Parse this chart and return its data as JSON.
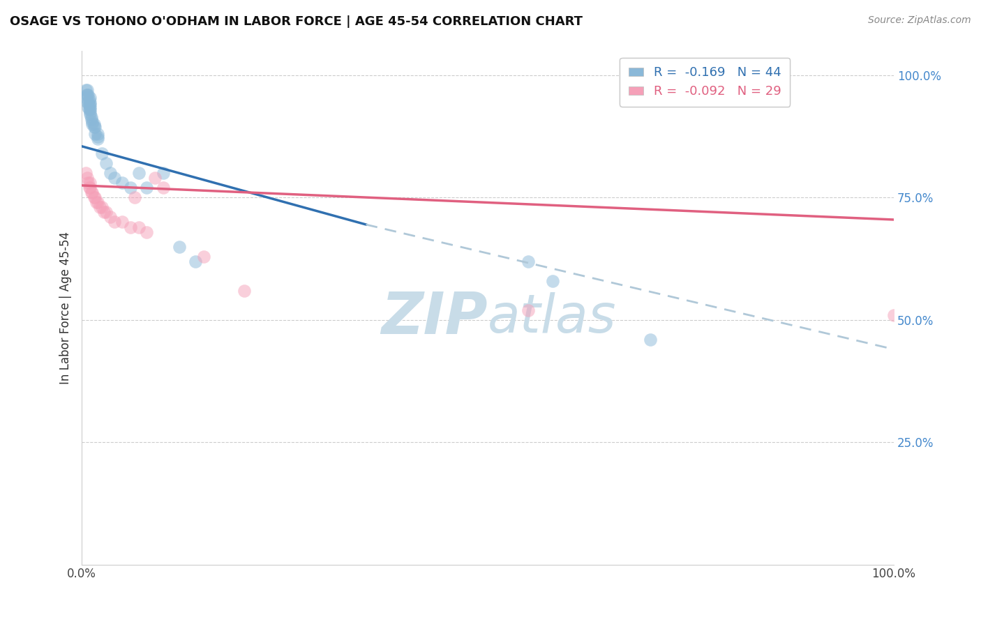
{
  "title": "OSAGE VS TOHONO O'ODHAM IN LABOR FORCE | AGE 45-54 CORRELATION CHART",
  "source_text": "Source: ZipAtlas.com",
  "ylabel": "In Labor Force | Age 45-54",
  "xlim": [
    0.0,
    1.0
  ],
  "ylim": [
    0.0,
    1.05
  ],
  "y_tick_labels": [
    "25.0%",
    "50.0%",
    "75.0%",
    "100.0%"
  ],
  "y_tick_values": [
    0.25,
    0.5,
    0.75,
    1.0
  ],
  "r_osage": -0.169,
  "n_osage": 44,
  "r_tohono": -0.092,
  "n_tohono": 29,
  "osage_color": "#8ab8d8",
  "tohono_color": "#f5a0b8",
  "osage_line_color": "#3070b0",
  "tohono_line_color": "#e06080",
  "dash_line_color": "#b0c8d8",
  "watermark_zip": "ZIP",
  "watermark_atlas": "atlas",
  "watermark_color": "#c8dce8",
  "background_color": "#ffffff",
  "osage_x": [
    0.005,
    0.005,
    0.006,
    0.007,
    0.007,
    0.007,
    0.008,
    0.008,
    0.008,
    0.009,
    0.009,
    0.009,
    0.01,
    0.01,
    0.01,
    0.01,
    0.01,
    0.01,
    0.01,
    0.012,
    0.012,
    0.013,
    0.013,
    0.015,
    0.015,
    0.016,
    0.016,
    0.02,
    0.02,
    0.02,
    0.025,
    0.03,
    0.035,
    0.04,
    0.05,
    0.06,
    0.07,
    0.08,
    0.1,
    0.12,
    0.14,
    0.55,
    0.58,
    0.7
  ],
  "osage_y": [
    0.955,
    0.97,
    0.96,
    0.945,
    0.96,
    0.97,
    0.935,
    0.945,
    0.96,
    0.93,
    0.94,
    0.95,
    0.92,
    0.925,
    0.93,
    0.935,
    0.94,
    0.945,
    0.955,
    0.91,
    0.915,
    0.9,
    0.905,
    0.9,
    0.895,
    0.895,
    0.88,
    0.87,
    0.875,
    0.88,
    0.84,
    0.82,
    0.8,
    0.79,
    0.78,
    0.77,
    0.8,
    0.77,
    0.8,
    0.65,
    0.62,
    0.62,
    0.58,
    0.46
  ],
  "tohono_x": [
    0.005,
    0.007,
    0.008,
    0.009,
    0.01,
    0.01,
    0.012,
    0.013,
    0.015,
    0.016,
    0.018,
    0.02,
    0.022,
    0.025,
    0.027,
    0.03,
    0.035,
    0.04,
    0.05,
    0.06,
    0.065,
    0.07,
    0.08,
    0.09,
    0.1,
    0.15,
    0.2,
    0.55,
    1.0
  ],
  "tohono_y": [
    0.8,
    0.79,
    0.78,
    0.77,
    0.78,
    0.77,
    0.76,
    0.76,
    0.75,
    0.75,
    0.74,
    0.74,
    0.73,
    0.73,
    0.72,
    0.72,
    0.71,
    0.7,
    0.7,
    0.69,
    0.75,
    0.69,
    0.68,
    0.79,
    0.77,
    0.63,
    0.56,
    0.52,
    0.51
  ],
  "osage_line_x0": 0.0,
  "osage_line_x_solid_end": 0.35,
  "osage_line_x1": 1.0,
  "osage_line_y0": 0.855,
  "osage_line_y_solid_end": 0.695,
  "osage_line_y1": 0.44,
  "tohono_line_x0": 0.0,
  "tohono_line_x1": 1.0,
  "tohono_line_y0": 0.775,
  "tohono_line_y1": 0.705
}
